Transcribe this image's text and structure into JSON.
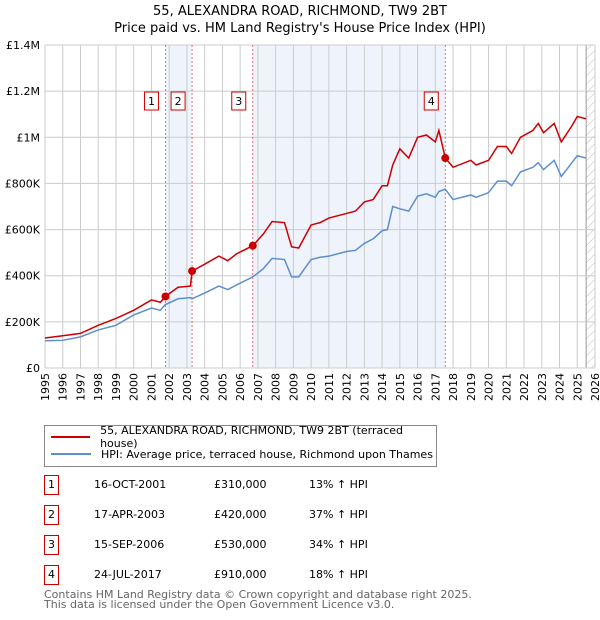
{
  "title": "55, ALEXANDRA ROAD, RICHMOND, TW9 2BT",
  "subtitle": "Price paid vs. HM Land Registry's House Price Index (HPI)",
  "chart_data": {
    "type": "line",
    "title": "55, ALEXANDRA ROAD, RICHMOND, TW9 2BT — Price paid vs. HM Land Registry's House Price Index (HPI)",
    "xlim": [
      1995,
      2026
    ],
    "ylim": [
      0,
      1400000
    ],
    "x_ticks": [
      "1995",
      "1996",
      "1997",
      "1998",
      "1999",
      "2000",
      "2001",
      "2002",
      "2003",
      "2004",
      "2005",
      "2006",
      "2007",
      "2008",
      "2009",
      "2010",
      "2011",
      "2012",
      "2013",
      "2014",
      "2015",
      "2016",
      "2017",
      "2018",
      "2019",
      "2020",
      "2021",
      "2022",
      "2023",
      "2024",
      "2025",
      "2026"
    ],
    "y_ticks": [
      {
        "v": 0,
        "label": "£0"
      },
      {
        "v": 200000,
        "label": "£200K"
      },
      {
        "v": 400000,
        "label": "£400K"
      },
      {
        "v": 600000,
        "label": "£600K"
      },
      {
        "v": 800000,
        "label": "£800K"
      },
      {
        "v": 1000000,
        "label": "£1M"
      },
      {
        "v": 1200000,
        "label": "£1.2M"
      },
      {
        "v": 1400000,
        "label": "£1.4M"
      }
    ],
    "grid": true,
    "shaded_ranges": [
      [
        2001.79,
        2003.29
      ],
      [
        2006.71,
        2017.56
      ]
    ],
    "hatched_from": 2025.5,
    "series": [
      {
        "name": "55, ALEXANDRA ROAD, RICHMOND, TW9 2BT (terraced house)",
        "color": "#cc0000",
        "x": [
          1995,
          1996,
          1997,
          1998,
          1999,
          2000,
          2001,
          2001.5,
          2001.79,
          2002.5,
          2003.2,
          2003.29,
          2004,
          2004.8,
          2005.3,
          2005.8,
          2006.71,
          2007.3,
          2007.8,
          2008.5,
          2008.9,
          2009.3,
          2010,
          2010.5,
          2011,
          2012,
          2012.5,
          2013,
          2013.5,
          2014,
          2014.3,
          2014.6,
          2015,
          2015.5,
          2016,
          2016.5,
          2017,
          2017.2,
          2017.56,
          2018,
          2019,
          2019.3,
          2020,
          2020.5,
          2021,
          2021.3,
          2021.8,
          2022.5,
          2022.8,
          2023.1,
          2023.7,
          2024.1,
          2024.7,
          2025,
          2025.5
        ],
        "y": [
          130000,
          140000,
          150000,
          185000,
          215000,
          250000,
          295000,
          285000,
          310000,
          350000,
          355000,
          420000,
          450000,
          485000,
          465000,
          495000,
          530000,
          580000,
          635000,
          630000,
          525000,
          520000,
          620000,
          630000,
          650000,
          670000,
          680000,
          720000,
          730000,
          790000,
          790000,
          880000,
          950000,
          910000,
          1000000,
          1010000,
          980000,
          1030000,
          910000,
          870000,
          900000,
          880000,
          900000,
          960000,
          960000,
          930000,
          1000000,
          1030000,
          1060000,
          1020000,
          1060000,
          980000,
          1050000,
          1090000,
          1080000
        ]
      },
      {
        "name": "HPI: Average price, terraced house, Richmond upon Thames",
        "color": "#5b8fd0",
        "x": [
          1995,
          1996,
          1997,
          1998,
          1999,
          2000,
          2001,
          2001.5,
          2001.79,
          2002.5,
          2003.2,
          2003.29,
          2004,
          2004.8,
          2005.3,
          2005.8,
          2006.71,
          2007.3,
          2007.8,
          2008.5,
          2008.9,
          2009.3,
          2010,
          2010.5,
          2011,
          2012,
          2012.5,
          2013,
          2013.5,
          2014,
          2014.3,
          2014.6,
          2015,
          2015.5,
          2016,
          2016.5,
          2017,
          2017.2,
          2017.56,
          2018,
          2019,
          2019.3,
          2020,
          2020.5,
          2021,
          2021.3,
          2021.8,
          2022.5,
          2022.8,
          2023.1,
          2023.7,
          2024.1,
          2024.7,
          2025,
          2025.5
        ],
        "y": [
          118000,
          120000,
          135000,
          165000,
          185000,
          230000,
          260000,
          250000,
          275000,
          300000,
          305000,
          300000,
          325000,
          355000,
          340000,
          360000,
          395000,
          430000,
          475000,
          470000,
          395000,
          395000,
          470000,
          480000,
          485000,
          505000,
          510000,
          540000,
          560000,
          595000,
          600000,
          700000,
          690000,
          680000,
          745000,
          755000,
          740000,
          765000,
          775000,
          730000,
          750000,
          740000,
          760000,
          810000,
          810000,
          790000,
          850000,
          870000,
          890000,
          860000,
          900000,
          830000,
          890000,
          920000,
          910000
        ]
      }
    ],
    "sales": [
      {
        "label": "1",
        "x": 2001.79,
        "y": 310000
      },
      {
        "label": "2",
        "x": 2003.29,
        "y": 420000
      },
      {
        "label": "3",
        "x": 2006.71,
        "y": 530000
      },
      {
        "label": "4",
        "x": 2017.56,
        "y": 910000
      }
    ]
  },
  "legend": [
    {
      "label": "55, ALEXANDRA ROAD, RICHMOND, TW9 2BT (terraced house)",
      "color": "#cc0000"
    },
    {
      "label": "HPI: Average price, terraced house, Richmond upon Thames",
      "color": "#5b8fd0"
    }
  ],
  "transactions": [
    {
      "num": "1",
      "date": "16-OCT-2001",
      "price": "£310,000",
      "hpi": "13% ↑ HPI"
    },
    {
      "num": "2",
      "date": "17-APR-2003",
      "price": "£420,000",
      "hpi": "37% ↑ HPI"
    },
    {
      "num": "3",
      "date": "15-SEP-2006",
      "price": "£530,000",
      "hpi": "34% ↑ HPI"
    },
    {
      "num": "4",
      "date": "24-JUL-2017",
      "price": "£910,000",
      "hpi": "18% ↑ HPI"
    }
  ],
  "footer": [
    "Contains HM Land Registry data © Crown copyright and database right 2025.",
    "This data is licensed under the Open Government Licence v3.0."
  ]
}
